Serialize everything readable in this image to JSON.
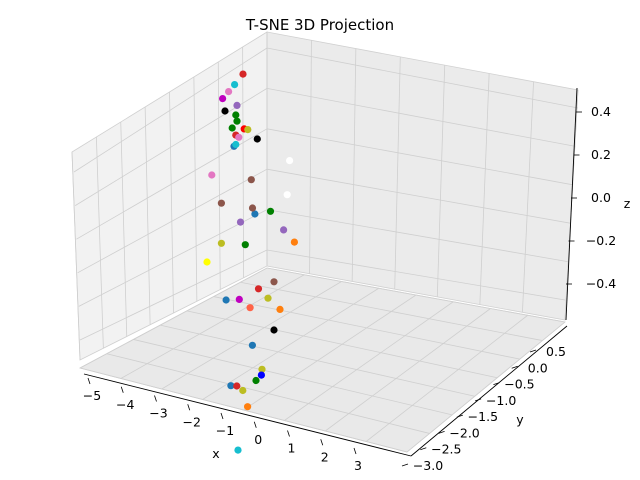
{
  "chart_data": {
    "type": "scatter",
    "projection": "3d",
    "title": "T-SNE 3D Projection",
    "xlabel": "x",
    "ylabel": "y",
    "zlabel": "z",
    "x_ticks": [
      "−5",
      "−4",
      "−3",
      "−2",
      "−1",
      "0",
      "1",
      "2",
      "3"
    ],
    "y_ticks": [
      "0.5",
      "0.0",
      "−0.5",
      "−1.0",
      "−1.5",
      "−2.0",
      "−2.5",
      "−3.0"
    ],
    "z_ticks": [
      "0.4",
      "0.2",
      "0.0",
      "−0.2",
      "−0.4"
    ],
    "grid": true,
    "points": [
      {
        "color": "#d62728",
        "x": -4.6,
        "y": -0.1,
        "z": 0.42
      },
      {
        "color": "#17becf",
        "x": -4.7,
        "y": -0.2,
        "z": 0.38
      },
      {
        "color": "#e377c2",
        "x": -4.8,
        "y": -0.25,
        "z": 0.35
      },
      {
        "color": "#bf00bf",
        "x": -4.9,
        "y": -0.3,
        "z": 0.32
      },
      {
        "color": "#9467bd",
        "x": -4.5,
        "y": -0.3,
        "z": 0.3
      },
      {
        "color": "#000000",
        "x": -4.7,
        "y": -0.4,
        "z": 0.28
      },
      {
        "color": "#008000",
        "x": -4.4,
        "y": -0.4,
        "z": 0.27
      },
      {
        "color": "#008000",
        "x": -4.3,
        "y": -0.45,
        "z": 0.25
      },
      {
        "color": "#008000",
        "x": -4.3,
        "y": -0.55,
        "z": 0.23
      },
      {
        "color": "#ff0000",
        "x": -4.1,
        "y": -0.45,
        "z": 0.22
      },
      {
        "color": "#bcbd22",
        "x": -4.0,
        "y": -0.45,
        "z": 0.22
      },
      {
        "color": "#d62728",
        "x": -4.2,
        "y": -0.55,
        "z": 0.2
      },
      {
        "color": "#e377c2",
        "x": -4.05,
        "y": -0.6,
        "z": 0.2
      },
      {
        "color": "#1f77b4",
        "x": -4.05,
        "y": -0.7,
        "z": 0.17
      },
      {
        "color": "#17becf",
        "x": -4.0,
        "y": -0.7,
        "z": 0.18
      },
      {
        "color": "#000000",
        "x": -3.6,
        "y": -0.55,
        "z": 0.2
      },
      {
        "color": "#ffffff",
        "x": -2.5,
        "y": -0.7,
        "z": 0.15
      },
      {
        "color": "#8c564b",
        "x": -3.3,
        "y": -0.9,
        "z": 0.06
      },
      {
        "color": "#ffffff",
        "x": -2.3,
        "y": -0.9,
        "z": 0.02
      },
      {
        "color": "#1f77b4",
        "x": -2.8,
        "y": -1.2,
        "z": -0.05
      },
      {
        "color": "#008000",
        "x": -2.5,
        "y": -1.1,
        "z": -0.04
      },
      {
        "color": "#8c564b",
        "x": -3.0,
        "y": -1.1,
        "z": -0.04
      },
      {
        "color": "#ff7f0e",
        "x": -1.3,
        "y": -1.5,
        "z": -0.1
      },
      {
        "color": "#e377c2",
        "x": -4.8,
        "y": -0.6,
        "z": 0.0
      },
      {
        "color": "#8c564b",
        "x": -4.0,
        "y": -1.0,
        "z": -0.06
      },
      {
        "color": "#9467bd",
        "x": -3.2,
        "y": -1.2,
        "z": -0.1
      },
      {
        "color": "#008000",
        "x": -2.8,
        "y": -1.4,
        "z": -0.17
      },
      {
        "color": "#9467bd",
        "x": -2.0,
        "y": -1.2,
        "z": -0.1
      },
      {
        "color": "#bcbd22",
        "x": -3.6,
        "y": -1.3,
        "z": -0.2
      },
      {
        "color": "#ffff00",
        "x": -4.0,
        "y": -1.3,
        "z": -0.3
      },
      {
        "color": "#8c564b",
        "x": -2.0,
        "y": -1.4,
        "z": -0.32
      },
      {
        "color": "#d62728",
        "x": -2.3,
        "y": -1.5,
        "z": -0.35
      },
      {
        "color": "#bcbd22",
        "x": -1.9,
        "y": -1.6,
        "z": -0.37
      },
      {
        "color": "#ff7f0e",
        "x": -1.3,
        "y": -1.8,
        "z": -0.38
      },
      {
        "color": "#bf00bf",
        "x": -2.7,
        "y": -1.6,
        "z": -0.4
      },
      {
        "color": "#1f77b4",
        "x": -3.2,
        "y": -1.5,
        "z": -0.43
      },
      {
        "color": "#ff6347",
        "x": -2.4,
        "y": -1.6,
        "z": -0.43
      },
      {
        "color": "#000000",
        "x": -1.2,
        "y": -2.0,
        "z": -0.45
      },
      {
        "color": "#1f77b4",
        "x": -1.8,
        "y": -2.0,
        "z": -0.54
      },
      {
        "color": "#bcbd22",
        "x": -1.0,
        "y": -2.4,
        "z": -0.58
      },
      {
        "color": "#0000ff",
        "x": -0.95,
        "y": -2.45,
        "z": -0.6
      },
      {
        "color": "#008000",
        "x": -1.1,
        "y": -2.45,
        "z": -0.63
      },
      {
        "color": "#1f77b4",
        "x": -2.0,
        "y": -2.3,
        "z": -0.7
      },
      {
        "color": "#d62728",
        "x": -1.7,
        "y": -2.4,
        "z": -0.68
      },
      {
        "color": "#bcbd22",
        "x": -1.4,
        "y": -2.5,
        "z": -0.68
      },
      {
        "color": "#ff7f0e",
        "x": -1.0,
        "y": -2.7,
        "z": -0.72
      },
      {
        "color": "#17becf",
        "x": -1.0,
        "y": -2.9,
        "z": -0.9
      }
    ]
  }
}
